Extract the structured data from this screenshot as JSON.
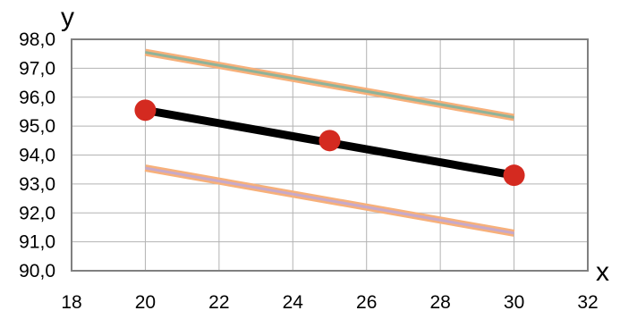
{
  "chart_data": {
    "type": "line",
    "xlabel": "x",
    "ylabel": "y",
    "xlim": [
      18,
      32
    ],
    "ylim": [
      90.0,
      98.0
    ],
    "x_ticks": [
      "18",
      "20",
      "22",
      "24",
      "26",
      "28",
      "30",
      "32"
    ],
    "y_ticks": [
      "90,0",
      "91,0",
      "92,0",
      "93,0",
      "94,0",
      "95,0",
      "96,0",
      "97,0",
      "98,0"
    ],
    "grid": true,
    "x_grid_step": 2,
    "y_grid_step": 1,
    "points": {
      "x": [
        20,
        25,
        30
      ],
      "y": [
        95.55,
        94.5,
        93.3
      ],
      "color": "#d42a20"
    },
    "series": [
      {
        "x": [
          20,
          30
        ],
        "y": [
          95.55,
          93.3
        ],
        "color": "#000000",
        "role": "fit"
      },
      {
        "x": [
          20,
          30
        ],
        "y": [
          97.55,
          95.3
        ],
        "color": "#8fb39a",
        "outline": "#f7b07a",
        "role": "upper-band"
      },
      {
        "x": [
          20,
          30
        ],
        "y": [
          93.55,
          91.3
        ],
        "color": "#c7a9c9",
        "outline": "#f7b07a",
        "role": "lower-band"
      }
    ]
  }
}
